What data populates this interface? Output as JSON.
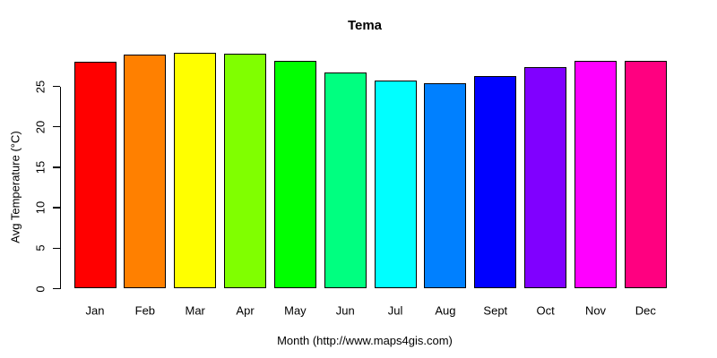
{
  "chart_data": {
    "type": "bar",
    "title": "Tema",
    "xlabel": "Month (http://www.maps4gis.com)",
    "ylabel": "Avg Temperature (°C)",
    "categories": [
      "Jan",
      "Feb",
      "Mar",
      "Apr",
      "May",
      "Jun",
      "Jul",
      "Aug",
      "Sept",
      "Oct",
      "Nov",
      "Dec"
    ],
    "values": [
      28.0,
      28.9,
      29.2,
      29.0,
      28.1,
      26.7,
      25.7,
      25.4,
      26.3,
      27.4,
      28.2,
      28.1
    ],
    "bar_colors": [
      "#FF0000",
      "#FF8000",
      "#FFFF00",
      "#80FF00",
      "#00FF00",
      "#00FF80",
      "#00FFFF",
      "#0080FF",
      "#0000FF",
      "#8000FF",
      "#FF00FF",
      "#FF0080"
    ],
    "bar_border_color": "#000000",
    "yticks": [
      0,
      5,
      10,
      15,
      20,
      25
    ],
    "ylim": [
      0,
      25
    ],
    "grid": false,
    "legend": null,
    "background": "#FFFFFF",
    "text_color": "#000000"
  }
}
